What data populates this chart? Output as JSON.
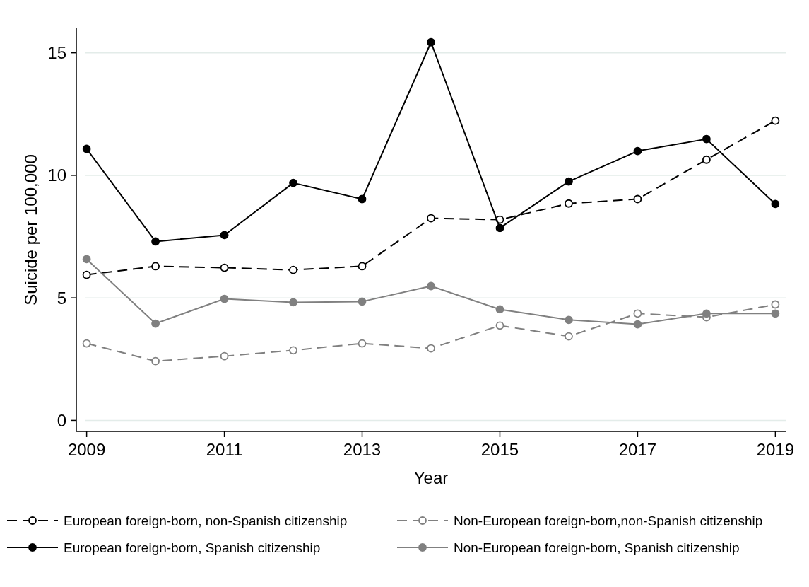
{
  "chart_data": {
    "type": "line",
    "xlabel": "Year",
    "ylabel": "Suicide per 100,000",
    "x": [
      2009,
      2010,
      2011,
      2012,
      2013,
      2014,
      2015,
      2016,
      2017,
      2018,
      2019
    ],
    "xlim": [
      2008.85,
      2019.15
    ],
    "xticks": [
      2009,
      2011,
      2013,
      2015,
      2017,
      2019
    ],
    "ylim": [
      -0.45,
      16
    ],
    "yticks": [
      0,
      5,
      10,
      15
    ],
    "grid": "y",
    "legend": "bottom",
    "marker": "circle",
    "series": [
      {
        "name": "European foreign-born, non-Spanish citizenship",
        "color": "#000000",
        "line_style": "dashed",
        "values": [
          5.94,
          6.29,
          6.23,
          6.14,
          6.29,
          8.25,
          8.19,
          8.85,
          9.03,
          10.64,
          12.23
        ]
      },
      {
        "name": "Non-European foreign-born,non-Spanish citizenship",
        "color": "#808080",
        "line_style": "dashed",
        "values": [
          3.14,
          2.42,
          2.62,
          2.86,
          3.14,
          2.94,
          3.87,
          3.43,
          4.36,
          4.21,
          4.73
        ]
      },
      {
        "name": "European foreign-born, Spanish citizenship",
        "color": "#000000",
        "line_style": "solid",
        "values": [
          11.08,
          7.3,
          7.56,
          9.69,
          9.03,
          15.43,
          7.85,
          9.75,
          10.99,
          11.48,
          8.83
        ]
      },
      {
        "name": "Non-European foreign-born, Spanish citizenship",
        "color": "#808080",
        "line_style": "solid",
        "values": [
          6.58,
          3.95,
          4.96,
          4.82,
          4.85,
          5.48,
          4.53,
          4.1,
          3.92,
          4.36,
          4.36
        ]
      }
    ]
  }
}
